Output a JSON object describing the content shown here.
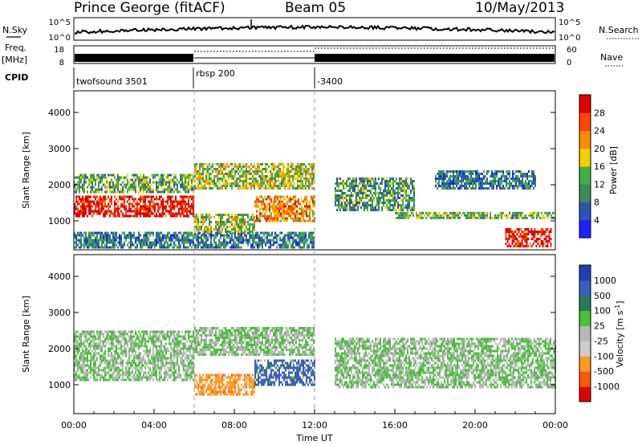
{
  "header": {
    "station": "Prince George (fitACF)",
    "beam": "Beam 05",
    "date": "10/May/2013"
  },
  "top_panels": {
    "sky_label": "N.Sky",
    "sky_max": "10^5",
    "sky_min": "10^0",
    "search_label": "N.Search",
    "search_max": "10^5",
    "search_min": "10^0",
    "freq_label_1": "Freq.",
    "freq_label_2": "[MHz]",
    "freq_max": "18",
    "freq_min": "8",
    "nave_label": "Nave",
    "nave_max": "60",
    "nave_min": "0",
    "cpid_label": "CPID",
    "cpid_segments": [
      {
        "label": "twofsound 3501",
        "start_hour": 0
      },
      {
        "label": "rbsp 200",
        "start_hour": 6
      },
      {
        "label": "-3400",
        "start_hour": 12
      }
    ]
  },
  "colors": {
    "power": [
      "#1f1fff",
      "#2a55b5",
      "#3a8a5a",
      "#44b044",
      "#f0d000",
      "#ff8c00",
      "#ff4500",
      "#e00000"
    ],
    "velocity": [
      "#e00000",
      "#ff5a00",
      "#ff9a20",
      "#cccccc",
      "#b8b8b8",
      "#4cbf3c",
      "#2a7a5a",
      "#3a5fc0",
      "#1f3fb0"
    ],
    "axis": "#000000"
  },
  "chart_data": [
    {
      "type": "heatmap",
      "name": "power",
      "ylabel": "Slant Range [km]",
      "yticks": [
        1000,
        2000,
        3000,
        4000
      ],
      "ylim": [
        200,
        4600
      ],
      "xlim": [
        0,
        24
      ],
      "colorbar_label": "Power [dB]",
      "colorbar_ticks": [
        "4",
        "8",
        "12",
        "16",
        "20",
        "24",
        "28"
      ],
      "colorbar_range": [
        0,
        32
      ],
      "regions": [
        {
          "t0": 0.0,
          "t1": 6.0,
          "r0": 1100,
          "r1": 1700,
          "level": 30
        },
        {
          "t0": 0.0,
          "t1": 6.0,
          "r0": 1800,
          "r1": 2300,
          "level": 13
        },
        {
          "t0": 0.0,
          "t1": 12.0,
          "r0": 250,
          "r1": 700,
          "level": 9
        },
        {
          "t0": 6.0,
          "t1": 9.0,
          "r0": 700,
          "r1": 1200,
          "level": 15
        },
        {
          "t0": 6.0,
          "t1": 12.0,
          "r0": 1900,
          "r1": 2600,
          "level": 16
        },
        {
          "t0": 9.0,
          "t1": 12.0,
          "r0": 1000,
          "r1": 1700,
          "level": 22
        },
        {
          "t0": 13.0,
          "t1": 17.0,
          "r0": 1300,
          "r1": 2200,
          "level": 11
        },
        {
          "t0": 16.0,
          "t1": 24.0,
          "r0": 1050,
          "r1": 1250,
          "level": 14
        },
        {
          "t0": 18.0,
          "t1": 23.0,
          "r0": 1900,
          "r1": 2400,
          "level": 9
        },
        {
          "t0": 21.5,
          "t1": 23.8,
          "r0": 300,
          "r1": 800,
          "level": 30
        }
      ]
    },
    {
      "type": "heatmap",
      "name": "velocity",
      "ylabel": "Slant Range [km]",
      "xlabel": "Time UT",
      "yticks": [
        1000,
        2000,
        3000,
        4000
      ],
      "ylim": [
        200,
        4600
      ],
      "xlim": [
        0,
        24
      ],
      "xticks": [
        "00:00",
        "04:00",
        "08:00",
        "12:00",
        "16:00",
        "20:00",
        "00:00"
      ],
      "colorbar_label": "Velocity [m s^-1]",
      "colorbar_ticks": [
        "-1000",
        "-500",
        "-100",
        "-25",
        "25",
        "100",
        "500",
        "1000"
      ],
      "regions": [
        {
          "t0": 0.0,
          "t1": 6.0,
          "r0": 1100,
          "r1": 2500,
          "level": 0
        },
        {
          "t0": 6.0,
          "t1": 12.0,
          "r0": 1800,
          "r1": 2600,
          "level": 0
        },
        {
          "t0": 6.0,
          "t1": 9.0,
          "r0": 700,
          "r1": 1300,
          "level": -300
        },
        {
          "t0": 9.0,
          "t1": 12.0,
          "r0": 1000,
          "r1": 1700,
          "level": 200
        },
        {
          "t0": 13.0,
          "t1": 24.0,
          "r0": 900,
          "r1": 2300,
          "level": 0
        }
      ]
    }
  ]
}
